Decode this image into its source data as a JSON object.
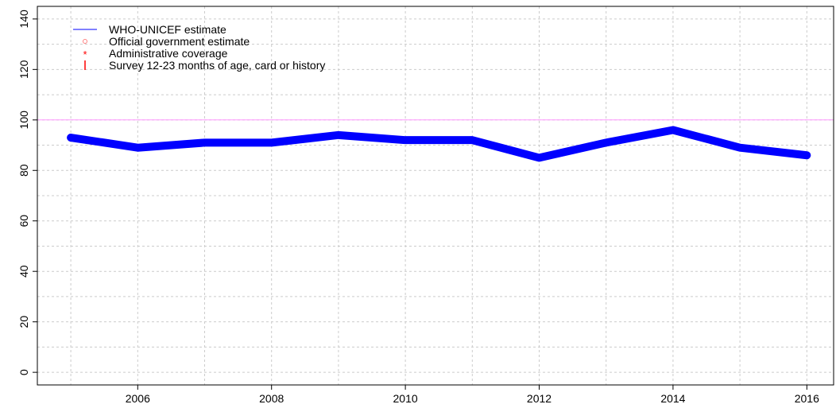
{
  "chart_data": {
    "type": "line",
    "title": "",
    "xlabel": "",
    "ylabel": "",
    "x": [
      2005,
      2006,
      2007,
      2008,
      2009,
      2010,
      2011,
      2012,
      2013,
      2014,
      2015,
      2016
    ],
    "series": [
      {
        "name": "WHO-UNICEF estimate",
        "color": "#0000ff",
        "values": [
          93,
          89,
          91,
          91,
          94,
          92,
          92,
          85,
          91,
          96,
          89,
          86
        ]
      }
    ],
    "reference_line": {
      "y": 100,
      "color": "#ff99ff"
    },
    "xlim": [
      2004.5,
      2016.4
    ],
    "ylim": [
      -5,
      145
    ],
    "xticks": [
      "2006",
      "2008",
      "2010",
      "2012",
      "2014",
      "2016"
    ],
    "yticks": [
      "0",
      "20",
      "40",
      "60",
      "80",
      "100",
      "120",
      "140"
    ],
    "grid": true,
    "legend_position": "top-left",
    "legend": [
      {
        "label": "WHO-UNICEF estimate",
        "symbol": "line",
        "color": "#0000ff"
      },
      {
        "label": "Official government estimate",
        "symbol": "circle",
        "color": "#ff8080"
      },
      {
        "label": "Administrative coverage",
        "symbol": "*",
        "color": "#ff0000"
      },
      {
        "label": "Survey 12-23 months of age, card or history",
        "symbol": "|",
        "color": "#ff0000"
      }
    ]
  }
}
